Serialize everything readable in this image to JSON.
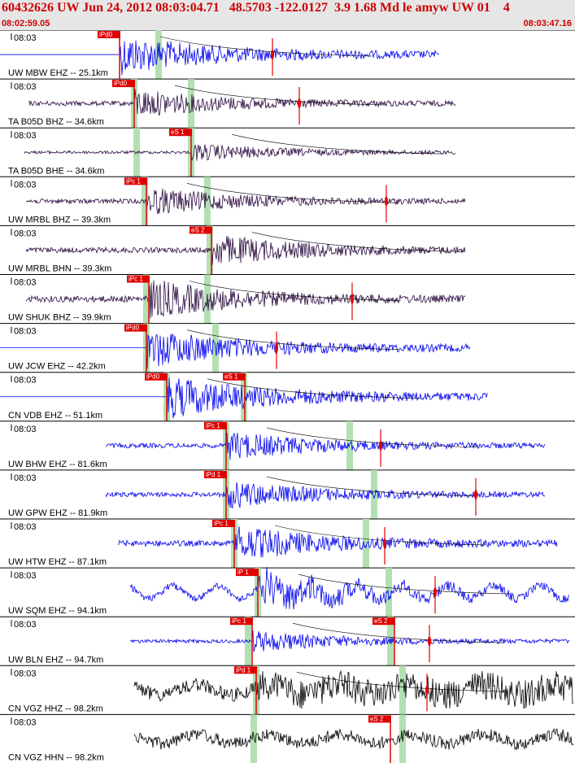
{
  "header": {
    "title": "60432626 UW Jun 24, 2012 08:03:04.71   48.5703 -122.0127  3.9 1.68 Md le amyw UW 01    4",
    "start_time": "08:02:59.05",
    "end_time": "08:03:47.16"
  },
  "tick_label": "08:03",
  "colors": {
    "blue": "#0000ee",
    "purple": "#2a0a40",
    "black": "#000000",
    "pick": "#e00000",
    "window": "#b3e0b3"
  },
  "traces": [
    {
      "label": "UW MBW EHZ -- 25.1km",
      "color": "blue",
      "pick": "iPd0",
      "pick2": ""
    },
    {
      "label": "TA B05D BHZ -- 34.6km",
      "color": "purple",
      "pick": "iPd0",
      "pick2": ""
    },
    {
      "label": "TA B05D BHE -- 34.6km",
      "color": "purple",
      "pick": "eS 1",
      "pick2": ""
    },
    {
      "label": "UW MRBL BHZ -- 39.3km",
      "color": "purple",
      "pick": "iPc 1",
      "pick2": ""
    },
    {
      "label": "UW MRBL BHN -- 39.3km",
      "color": "purple",
      "pick": "eS 2",
      "pick2": ""
    },
    {
      "label": "UW SHUK BHZ -- 39.9km",
      "color": "purple",
      "pick": "iPc 1",
      "pick2": ""
    },
    {
      "label": "UW JCW EHZ -- 42.2km",
      "color": "blue",
      "pick": "iPd0",
      "pick2": ""
    },
    {
      "label": "CN VDB EHZ -- 51.1km",
      "color": "blue",
      "pick": "iPd0",
      "pick2": "eS 1"
    },
    {
      "label": "UW BHW EHZ -- 81.6km",
      "color": "blue",
      "pick": "iPc 1",
      "pick2": ""
    },
    {
      "label": "UW GPW EHZ -- 81.9km",
      "color": "blue",
      "pick": "iPd 1",
      "pick2": ""
    },
    {
      "label": "UW HTW EHZ -- 87.1km",
      "color": "blue",
      "pick": "iPc 1",
      "pick2": ""
    },
    {
      "label": "UW SQM EHZ -- 94.1km",
      "color": "blue",
      "pick": "iP 1",
      "pick2": ""
    },
    {
      "label": "UW BLN EHZ -- 94.7km",
      "color": "blue",
      "pick": "iPc 1",
      "pick2": "eS 2"
    },
    {
      "label": "CN VGZ HHZ -- 98.2km",
      "color": "black",
      "pick": "iPd 1",
      "pick2": ""
    },
    {
      "label": "CN VGZ HHN -- 98.2km",
      "color": "black",
      "pick": "",
      "pick2": "eS 2"
    }
  ]
}
